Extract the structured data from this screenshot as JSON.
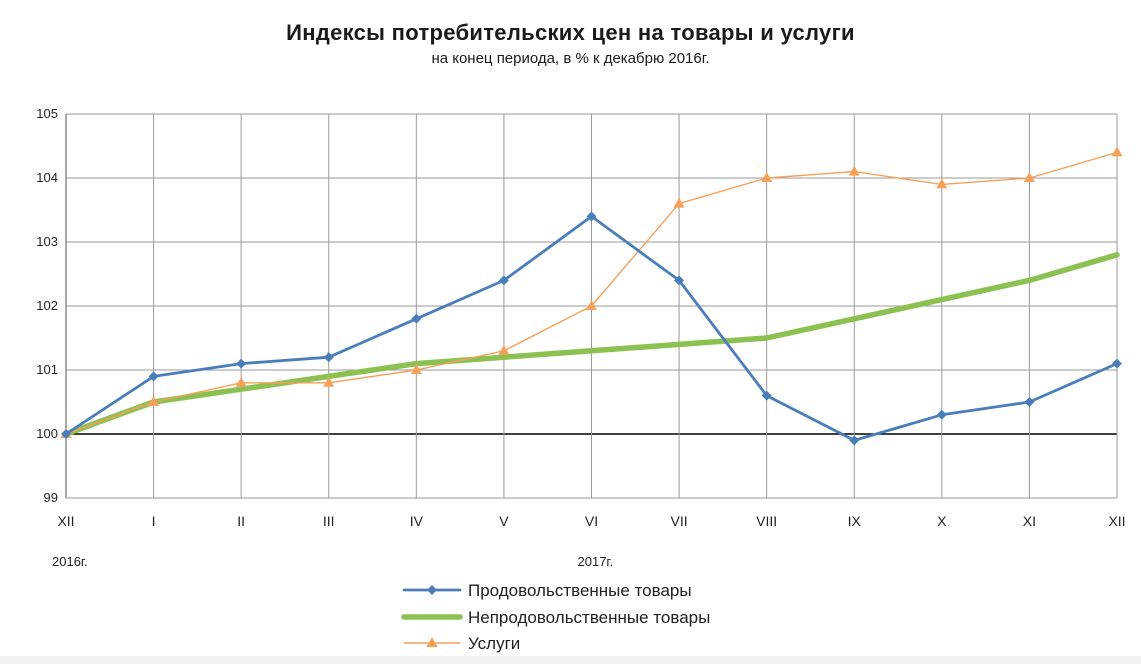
{
  "chart_data": {
    "type": "line",
    "title": "Индексы потребительских цен на товары и услуги",
    "subtitle": "на конец периода, в % к декабрю 2016г.",
    "categories": [
      "XII",
      "I",
      "II",
      "III",
      "IV",
      "V",
      "VI",
      "VII",
      "VIII",
      "IX",
      "X",
      "XI",
      "XII"
    ],
    "year_labels": [
      {
        "text": "2016г.",
        "category_index": 0
      },
      {
        "text": "2017г.",
        "category_index": 6
      }
    ],
    "ylim": [
      99,
      105
    ],
    "yticks": [
      99,
      100,
      101,
      102,
      103,
      104,
      105
    ],
    "baseline": 100,
    "grid": true,
    "legend_position": "bottom",
    "series": [
      {
        "name": "Продовольственные товары",
        "color": "#4a7ebb",
        "marker": "diamond",
        "style": "medium",
        "values": [
          100.0,
          100.9,
          101.1,
          101.2,
          101.8,
          102.4,
          103.4,
          102.4,
          100.6,
          99.9,
          100.3,
          100.5,
          101.1
        ]
      },
      {
        "name": "Непродовольственные товары",
        "color": "#8cc152",
        "marker": "none",
        "style": "thick",
        "values": [
          100.0,
          100.5,
          100.7,
          100.9,
          101.1,
          101.2,
          101.3,
          101.4,
          101.5,
          101.8,
          102.1,
          102.4,
          102.8
        ]
      },
      {
        "name": "Услуги",
        "color": "#f6a15a",
        "marker": "triangle",
        "style": "thin",
        "values": [
          100.0,
          100.5,
          100.8,
          100.8,
          101.0,
          101.3,
          102.0,
          103.6,
          104.0,
          104.1,
          103.9,
          104.0,
          104.4
        ]
      }
    ]
  }
}
